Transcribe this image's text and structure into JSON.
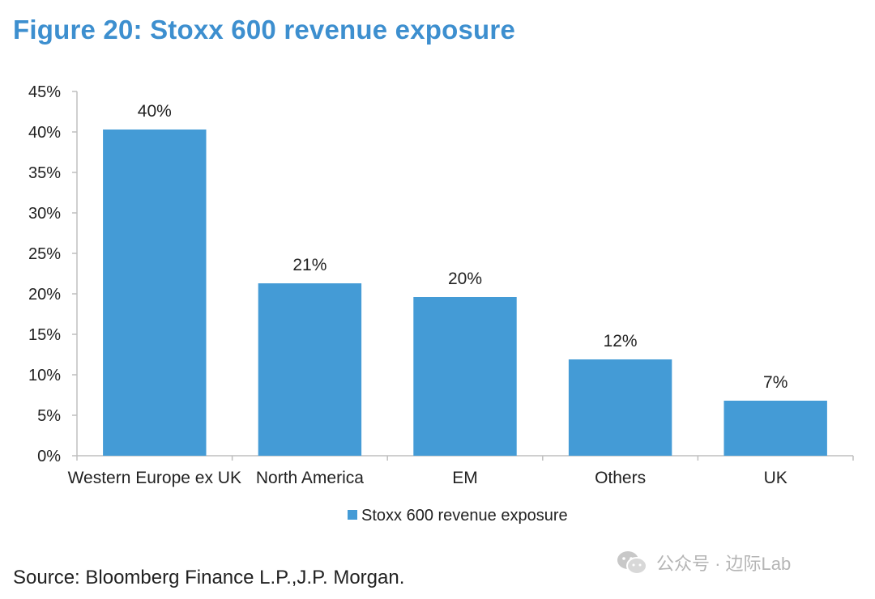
{
  "title": "Figure 20: Stoxx 600 revenue exposure",
  "source": "Source: Bloomberg Finance L.P.,J.P. Morgan.",
  "watermark": "公众号 · 边际Lab",
  "colors": {
    "title": "#3d8fcf",
    "bar": "#449bd6",
    "axis": "#bfbfbf",
    "watermark": "#b5b5b5"
  },
  "chart_data": {
    "type": "bar",
    "categories": [
      "Western Europe ex UK",
      "North America",
      "EM",
      "Others",
      "UK"
    ],
    "series": [
      {
        "name": "Stoxx 600 revenue exposure",
        "values": [
          40.3,
          21.3,
          19.6,
          11.9,
          6.8
        ]
      }
    ],
    "data_labels": [
      "40%",
      "21%",
      "20%",
      "12%",
      "7%"
    ],
    "yticks": [
      0,
      5,
      10,
      15,
      20,
      25,
      30,
      35,
      40,
      45
    ],
    "ytick_labels": [
      "0%",
      "5%",
      "10%",
      "15%",
      "20%",
      "25%",
      "30%",
      "35%",
      "40%",
      "45%"
    ],
    "ylim": [
      0,
      45
    ],
    "grid": false,
    "legend": "bottom-center"
  }
}
